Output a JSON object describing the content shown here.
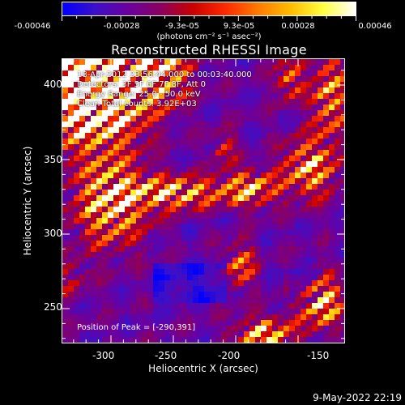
{
  "colorbar": {
    "tick_labels": [
      "-0.00046",
      "-0.00028",
      "-9.3e-05",
      "9.3e-05",
      "0.00028",
      "0.00046"
    ],
    "unit_label": "(photons cm⁻² s⁻¹ asec⁻²)",
    "colors": [
      "#0000ff",
      "#3b10c8",
      "#6a00a0",
      "#8a0060",
      "#c80000",
      "#ff2a00",
      "#ff7a00",
      "#ffbb00",
      "#ffff40",
      "#ffffff"
    ]
  },
  "plot": {
    "title": "Reconstructed RHESSI Image",
    "info_lines": [
      "18-Apr-2012 23:56:44.000 to 00:03:40.000",
      "Detectors: 3F 5F 6F 7F 8F, Att 0",
      "Energy Range: 25.0 - 50.0 keV",
      "Clean    Total counts: 3.92E+03"
    ],
    "peak_label": "Position of Peak = [-290,391]",
    "x_axis": {
      "label": "Heliocentric X (arcsec)",
      "ticks": [
        "-300",
        "-250",
        "-200",
        "-150"
      ]
    },
    "y_axis": {
      "label": "Heliocentric Y (arcsec)",
      "ticks": [
        "400",
        "350",
        "300",
        "250"
      ]
    }
  },
  "footer": {
    "date": "9-May-2022 22:19"
  }
}
